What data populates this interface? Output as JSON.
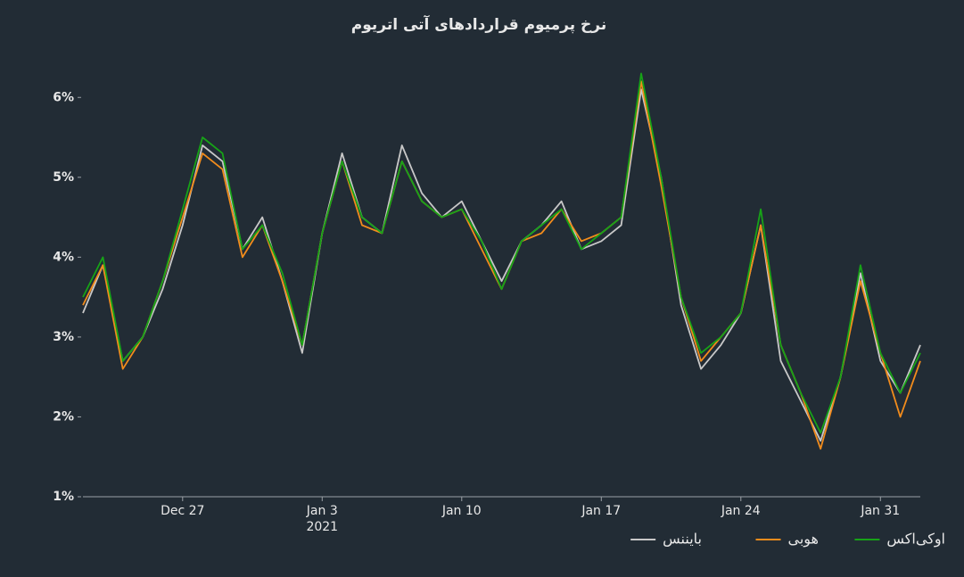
{
  "chart_data": {
    "type": "line",
    "title": "نرخ پرمیوم قراردادهای آتی اتریوم",
    "x": [
      "2020-12-22",
      "2020-12-23",
      "2020-12-24",
      "2020-12-25",
      "2020-12-26",
      "2020-12-27",
      "2020-12-28",
      "2020-12-29",
      "2020-12-30",
      "2020-12-31",
      "2021-01-01",
      "2021-01-02",
      "2021-01-03",
      "2021-01-04",
      "2021-01-05",
      "2021-01-06",
      "2021-01-07",
      "2021-01-08",
      "2021-01-09",
      "2021-01-10",
      "2021-01-11",
      "2021-01-12",
      "2021-01-13",
      "2021-01-14",
      "2021-01-15",
      "2021-01-16",
      "2021-01-17",
      "2021-01-18",
      "2021-01-19",
      "2021-01-20",
      "2021-01-21",
      "2021-01-22",
      "2021-01-23",
      "2021-01-24",
      "2021-01-25",
      "2021-01-26",
      "2021-01-27",
      "2021-01-28",
      "2021-01-29",
      "2021-01-30",
      "2021-01-31",
      "2021-02-01",
      "2021-02-02"
    ],
    "series": [
      {
        "name": "بایننس",
        "color": "#c8c8c8",
        "values": [
          3.3,
          3.9,
          2.7,
          3.0,
          3.6,
          4.4,
          5.4,
          5.2,
          4.1,
          4.5,
          3.7,
          2.8,
          4.3,
          5.3,
          4.5,
          4.3,
          5.4,
          4.8,
          4.5,
          4.7,
          4.2,
          3.7,
          4.2,
          4.4,
          4.7,
          4.1,
          4.2,
          4.4,
          6.1,
          5.0,
          3.4,
          2.6,
          2.9,
          3.3,
          4.4,
          2.7,
          2.2,
          1.7,
          2.5,
          3.8,
          2.7,
          2.3,
          2.9
        ]
      },
      {
        "name": "هوبی",
        "color": "#f28c1c",
        "values": [
          3.4,
          3.9,
          2.6,
          3.0,
          3.7,
          4.5,
          5.3,
          5.1,
          4.0,
          4.4,
          3.7,
          2.9,
          4.3,
          5.2,
          4.4,
          4.3,
          5.2,
          4.7,
          4.5,
          4.6,
          4.1,
          3.6,
          4.2,
          4.3,
          4.6,
          4.2,
          4.3,
          4.5,
          6.2,
          4.9,
          3.5,
          2.7,
          3.0,
          3.3,
          4.4,
          2.9,
          2.3,
          1.6,
          2.5,
          3.7,
          2.8,
          2.0,
          2.7
        ]
      },
      {
        "name": "اوکی‌اکس",
        "color": "#17a317",
        "values": [
          3.5,
          4.0,
          2.7,
          3.0,
          3.7,
          4.6,
          5.5,
          5.3,
          4.1,
          4.4,
          3.8,
          2.9,
          4.3,
          5.2,
          4.5,
          4.3,
          5.2,
          4.7,
          4.5,
          4.6,
          4.2,
          3.6,
          4.2,
          4.4,
          4.6,
          4.1,
          4.3,
          4.5,
          6.3,
          5.0,
          3.5,
          2.8,
          3.0,
          3.3,
          4.6,
          2.9,
          2.3,
          1.8,
          2.5,
          3.9,
          2.8,
          2.3,
          2.8
        ]
      }
    ],
    "xlim": [
      "2020-12-22",
      "2021-02-02"
    ],
    "xticks": [
      {
        "value": "2020-12-27",
        "label": "Dec 27"
      },
      {
        "value": "2021-01-03",
        "label": "Jan 3\n2021"
      },
      {
        "value": "2021-01-10",
        "label": "Jan 10"
      },
      {
        "value": "2021-01-17",
        "label": "Jan 17"
      },
      {
        "value": "2021-01-24",
        "label": "Jan 24"
      },
      {
        "value": "2021-01-31",
        "label": "Jan 31"
      }
    ],
    "ylim": [
      1,
      6.55
    ],
    "yticks": [
      {
        "value": 1,
        "label": "1%"
      },
      {
        "value": 2,
        "label": "2%"
      },
      {
        "value": 3,
        "label": "3%"
      },
      {
        "value": 4,
        "label": "4%"
      },
      {
        "value": 5,
        "label": "5%"
      },
      {
        "value": 6,
        "label": "6%"
      }
    ],
    "grid": false
  }
}
